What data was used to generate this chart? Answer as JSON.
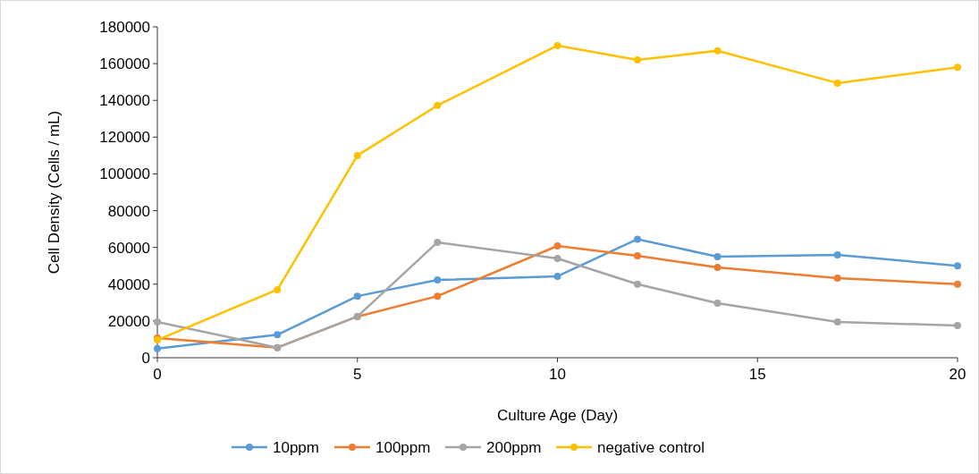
{
  "chart_data": {
    "type": "line",
    "xlabel": "Culture Age (Day)",
    "ylabel": "Cell Density (Cells / mL)",
    "x": [
      0,
      3,
      5,
      7,
      10,
      12,
      14,
      17,
      20
    ],
    "series": [
      {
        "name": "10ppm",
        "color": "#5b9bd5",
        "values": [
          5000,
          12500,
          33500,
          42300,
          44300,
          64500,
          55000,
          56000,
          50000
        ]
      },
      {
        "name": "100ppm",
        "color": "#ed7d31",
        "values": [
          10700,
          5500,
          22400,
          33500,
          60800,
          55500,
          49100,
          43300,
          40000
        ]
      },
      {
        "name": "200ppm",
        "color": "#a5a5a5",
        "values": [
          19500,
          5500,
          22400,
          62800,
          54000,
          40000,
          29700,
          19500,
          17500
        ]
      },
      {
        "name": "negative control",
        "color": "#ffc000",
        "values": [
          9700,
          37000,
          110000,
          137200,
          169800,
          162000,
          167000,
          149400,
          158000
        ]
      }
    ],
    "xlim": [
      0,
      20
    ],
    "xticks": [
      0,
      5,
      10,
      15,
      20
    ],
    "ylim": [
      0,
      180000
    ],
    "yticks": [
      0,
      20000,
      40000,
      60000,
      80000,
      100000,
      120000,
      140000,
      160000,
      180000
    ],
    "grid": false,
    "legend": "bottom",
    "marker": "circle",
    "line_style": "solid"
  }
}
